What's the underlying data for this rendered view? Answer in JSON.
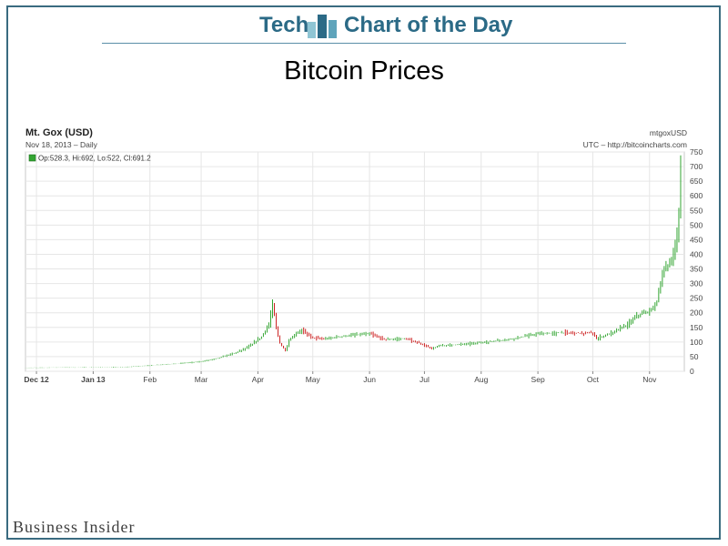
{
  "header": {
    "left_word": "Tech",
    "right_words": "Chart of the Day"
  },
  "page_title": "Bitcoin Prices",
  "brand": "Business Insider",
  "colors": {
    "up": "#33a532",
    "down": "#cc2222",
    "grid": "#e6e6e6",
    "axis": "#444444",
    "header": "#2b6a86"
  },
  "chart_data": {
    "type": "line",
    "subtype": "candlestick",
    "title": "Mt. Gox (USD)",
    "subtitle": "Nov 18, 2013 – Daily",
    "legend": "Op:528.3, Hi:692, Lo:522, Cl:691.2",
    "right_title": "mtgoxUSD",
    "source": "UTC – http://bitcoincharts.com",
    "ylim": [
      0,
      750
    ],
    "yticks": [
      0,
      50,
      100,
      150,
      200,
      250,
      300,
      350,
      400,
      450,
      500,
      550,
      600,
      650,
      700,
      750
    ],
    "xlim": [
      "2012-11-25",
      "2013-11-20"
    ],
    "xticks": [
      {
        "label": "Dec 12",
        "date": "2012-12-01"
      },
      {
        "label": "Jan 13",
        "date": "2013-01-01"
      },
      {
        "label": "Feb",
        "date": "2013-02-01"
      },
      {
        "label": "Mar",
        "date": "2013-03-01"
      },
      {
        "label": "Apr",
        "date": "2013-04-01"
      },
      {
        "label": "May",
        "date": "2013-05-01"
      },
      {
        "label": "Jun",
        "date": "2013-06-01"
      },
      {
        "label": "Jul",
        "date": "2013-07-01"
      },
      {
        "label": "Aug",
        "date": "2013-08-01"
      },
      {
        "label": "Sep",
        "date": "2013-09-01"
      },
      {
        "label": "Oct",
        "date": "2013-10-01"
      },
      {
        "label": "Nov",
        "date": "2013-11-01"
      }
    ],
    "grid": true,
    "series": [
      {
        "points": [
          [
            "2012-11-25",
            12
          ],
          [
            "2012-12-15",
            13
          ],
          [
            "2013-01-05",
            13.5
          ],
          [
            "2013-01-20",
            15
          ],
          [
            "2013-02-01",
            20
          ],
          [
            "2013-02-15",
            26
          ],
          [
            "2013-03-01",
            33
          ],
          [
            "2013-03-10",
            45
          ],
          [
            "2013-03-20",
            64
          ],
          [
            "2013-03-28",
            88
          ],
          [
            "2013-04-03",
            118
          ],
          [
            "2013-04-07",
            160
          ],
          [
            "2013-04-09",
            230
          ],
          [
            "2013-04-11",
            150
          ],
          [
            "2013-04-13",
            95
          ],
          [
            "2013-04-16",
            70
          ],
          [
            "2013-04-18",
            105
          ],
          [
            "2013-04-22",
            130
          ],
          [
            "2013-04-25",
            140
          ],
          [
            "2013-05-01",
            115
          ],
          [
            "2013-05-07",
            110
          ],
          [
            "2013-05-15",
            118
          ],
          [
            "2013-05-25",
            125
          ],
          [
            "2013-06-01",
            128
          ],
          [
            "2013-06-10",
            108
          ],
          [
            "2013-06-20",
            112
          ],
          [
            "2013-06-28",
            96
          ],
          [
            "2013-07-05",
            78
          ],
          [
            "2013-07-10",
            88
          ],
          [
            "2013-07-20",
            92
          ],
          [
            "2013-08-01",
            98
          ],
          [
            "2013-08-15",
            108
          ],
          [
            "2013-09-01",
            128
          ],
          [
            "2013-09-15",
            132
          ],
          [
            "2013-10-01",
            130
          ],
          [
            "2013-10-03",
            112
          ],
          [
            "2013-10-10",
            128
          ],
          [
            "2013-10-20",
            160
          ],
          [
            "2013-10-25",
            190
          ],
          [
            "2013-11-01",
            205
          ],
          [
            "2013-11-05",
            240
          ],
          [
            "2013-11-08",
            330
          ],
          [
            "2013-11-11",
            365
          ],
          [
            "2013-11-13",
            380
          ],
          [
            "2013-11-15",
            430
          ],
          [
            "2013-11-16",
            475
          ],
          [
            "2013-11-17",
            528
          ],
          [
            "2013-11-18",
            691.2
          ]
        ]
      }
    ]
  }
}
